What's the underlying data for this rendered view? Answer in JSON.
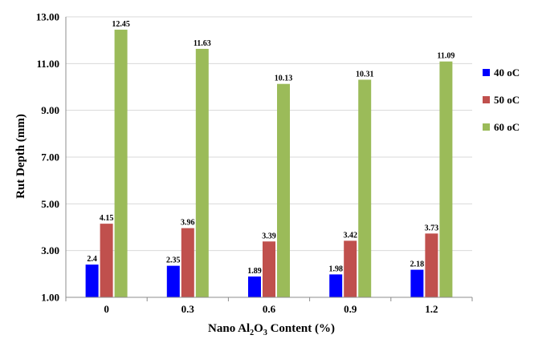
{
  "chart_data": {
    "type": "bar",
    "xlabel_parts": [
      "Nano Al",
      "2",
      "O",
      "3",
      " Content (%)"
    ],
    "ylabel": "Rut Depth (mm)",
    "categories": [
      "0",
      "0.3",
      "0.6",
      "0.9",
      "1.2"
    ],
    "ylim": [
      1.0,
      13.0
    ],
    "yticks": [
      "1.00",
      "3.00",
      "5.00",
      "7.00",
      "9.00",
      "11.00",
      "13.00"
    ],
    "grid": true,
    "legend_position": "right",
    "series": [
      {
        "name": "40 oC",
        "color": "#0000ff",
        "values": [
          2.4,
          2.35,
          1.89,
          1.98,
          2.18
        ],
        "labels": [
          "2.4",
          "2.35",
          "1.89",
          "1.98",
          "2.18"
        ]
      },
      {
        "name": "50 oC",
        "color": "#c0504d",
        "values": [
          4.15,
          3.96,
          3.39,
          3.42,
          3.73
        ],
        "labels": [
          "4.15",
          "3.96",
          "3.39",
          "3.42",
          "3.73"
        ]
      },
      {
        "name": "60 oC",
        "color": "#9bbb59",
        "values": [
          12.45,
          11.63,
          10.13,
          10.31,
          11.09
        ],
        "labels": [
          "12.45",
          "11.63",
          "10.13",
          "10.31",
          "11.09"
        ]
      }
    ]
  }
}
